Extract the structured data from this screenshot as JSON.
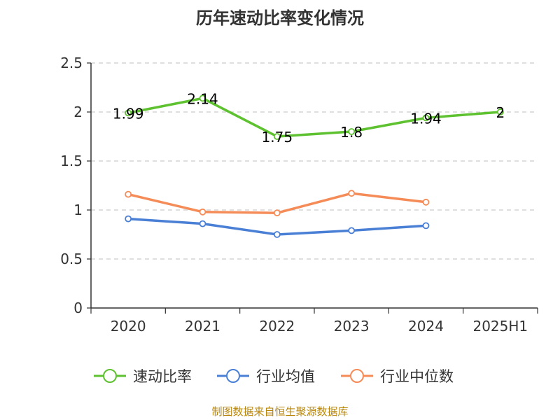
{
  "chart_data": {
    "type": "line",
    "title": "历年速动比率变化情况",
    "categories": [
      "2020",
      "2021",
      "2022",
      "2023",
      "2024",
      "2025H1"
    ],
    "ylim": [
      0,
      2.5
    ],
    "yticks": [
      "0",
      "0.5",
      "1",
      "1.5",
      "2",
      "2.5"
    ],
    "ytick_values": [
      0,
      0.5,
      1,
      1.5,
      2,
      2.5
    ],
    "grid": true,
    "legend_position": "bottom",
    "series": [
      {
        "name": "速动比率",
        "color": "#5ec12f",
        "values": [
          1.99,
          2.14,
          1.75,
          1.8,
          1.94,
          2
        ],
        "labels": [
          "1.99",
          "2.14",
          "1.75",
          "1.8",
          "1.94",
          "2"
        ]
      },
      {
        "name": "行业均值",
        "color": "#4a7fd6",
        "values": [
          0.91,
          0.86,
          0.75,
          0.79,
          0.84,
          null
        ]
      },
      {
        "name": "行业中位数",
        "color": "#f58b57",
        "values": [
          1.16,
          0.98,
          0.97,
          1.17,
          1.08,
          null
        ]
      }
    ]
  },
  "footer": {
    "source": "制图数据来自恒生聚源数据库"
  }
}
